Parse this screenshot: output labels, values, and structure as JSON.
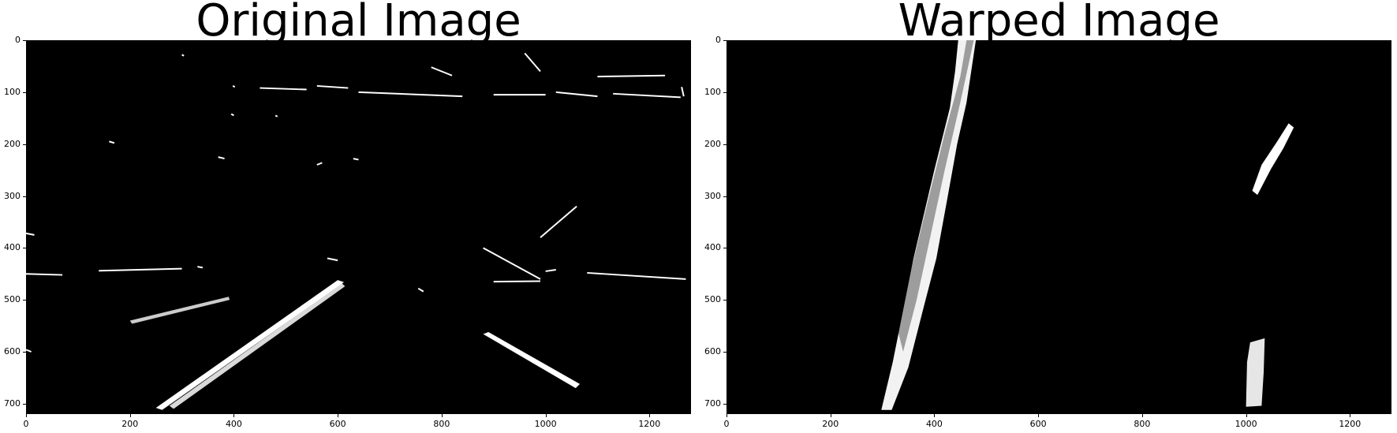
{
  "panels": [
    {
      "title": "Original Image",
      "x_ticks": [
        "0",
        "200",
        "400",
        "600",
        "800",
        "1000",
        "1200"
      ],
      "y_ticks": [
        "0",
        "100",
        "200",
        "300",
        "400",
        "500",
        "600",
        "700"
      ]
    },
    {
      "title": "Warped Image",
      "x_ticks": [
        "0",
        "200",
        "400",
        "600",
        "800",
        "1000",
        "1200"
      ],
      "y_ticks": [
        "0",
        "100",
        "200",
        "300",
        "400",
        "500",
        "600",
        "700"
      ]
    }
  ],
  "colors": {
    "background": "#000000",
    "foreground": "#ffffff"
  }
}
